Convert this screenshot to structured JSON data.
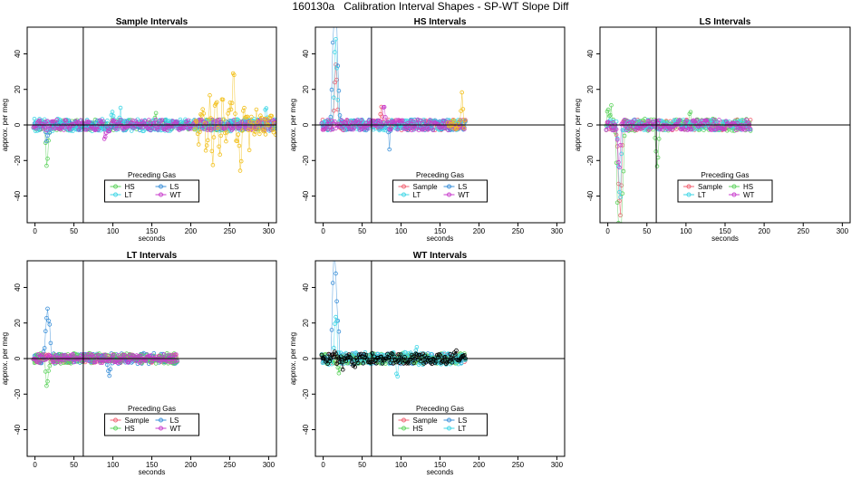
{
  "page_title": "160130a   Calibration Interval Shapes - SP-WT Slope Diff",
  "colors": {
    "Sample": "#f06070",
    "HS": "#5ed35e",
    "LS": "#3a8fd8",
    "LT": "#3fd6e6",
    "WT": "#c83ccc",
    "gold": "#f2c01c",
    "black": "#000000"
  },
  "chart_data": [
    {
      "type": "scatter",
      "title": "Sample Intervals",
      "xlabel": "seconds",
      "ylabel": "approx. per meg",
      "xlim": [
        -10,
        310
      ],
      "ylim": [
        -55,
        55
      ],
      "xticks": [
        0,
        50,
        100,
        150,
        200,
        250,
        300
      ],
      "yticks": [
        -40,
        -20,
        0,
        20,
        40
      ],
      "vline_x": 62,
      "hline_y": 0,
      "legend": {
        "title": "Preceding Gas",
        "position": "bottom-center",
        "entries": [
          "HS",
          "LS",
          "LT",
          "WT"
        ]
      },
      "series": [
        {
          "name": "HS",
          "color_key": "HS",
          "xmax": 310,
          "noise": 3,
          "spikes": [
            [
              15,
              -21
            ],
            [
              17,
              -12
            ],
            [
              155,
              11
            ]
          ]
        },
        {
          "name": "LS",
          "color_key": "LS",
          "xmax": 310,
          "noise": 3,
          "spikes": [
            [
              15,
              -9
            ],
            [
              17,
              -6
            ]
          ]
        },
        {
          "name": "LT",
          "color_key": "LT",
          "xmax": 310,
          "noise": 3.5,
          "spikes": [
            [
              100,
              9
            ],
            [
              110,
              8
            ],
            [
              297,
              12
            ]
          ]
        },
        {
          "name": "WT",
          "color_key": "WT",
          "xmax": 310,
          "noise": 3,
          "spikes": [
            [
              90,
              -9
            ],
            [
              95,
              -8
            ]
          ]
        },
        {
          "color_key": "gold",
          "xmax": 310,
          "noise": 6,
          "spikes": [
            [
              210,
              -10
            ],
            [
              215,
              12
            ],
            [
              220,
              -22
            ],
            [
              225,
              19
            ],
            [
              228,
              -32
            ],
            [
              232,
              20
            ],
            [
              237,
              -21
            ],
            [
              241,
              21
            ],
            [
              245,
              -13
            ],
            [
              250,
              18
            ],
            [
              255,
              33
            ],
            [
              259,
              -13
            ],
            [
              264,
              -25
            ],
            [
              268,
              8
            ],
            [
              275,
              -10
            ],
            [
              285,
              9
            ],
            [
              300,
              5
            ]
          ],
          "from": 205
        }
      ]
    },
    {
      "type": "scatter",
      "title": "HS Intervals",
      "xlabel": "seconds",
      "ylabel": "approx. per meg",
      "xlim": [
        -10,
        310
      ],
      "ylim": [
        -55,
        55
      ],
      "xticks": [
        0,
        50,
        100,
        150,
        200,
        250,
        300
      ],
      "yticks": [
        -40,
        -20,
        0,
        20,
        40
      ],
      "vline_x": 62,
      "hline_y": 0,
      "legend": {
        "title": "Preceding Gas",
        "position": "bottom-center",
        "entries": [
          "Sample",
          "LS",
          "LT",
          "WT"
        ]
      },
      "series": [
        {
          "name": "Sample",
          "color_key": "Sample",
          "xmax": 183,
          "noise": 3,
          "spikes": [
            [
              15,
              22
            ],
            [
              17,
              30
            ],
            [
              75,
              10
            ]
          ]
        },
        {
          "name": "LS",
          "color_key": "LS",
          "xmax": 183,
          "noise": 3,
          "spikes": [
            [
              12,
              35
            ],
            [
              14,
              50
            ],
            [
              16,
              55
            ],
            [
              18,
              40
            ],
            [
              20,
              15
            ],
            [
              85,
              -12
            ]
          ]
        },
        {
          "name": "LT",
          "color_key": "LT",
          "xmax": 183,
          "noise": 3,
          "spikes": [
            [
              15,
              35
            ],
            [
              17,
              42
            ]
          ]
        },
        {
          "name": "WT",
          "color_key": "WT",
          "xmax": 183,
          "noise": 3,
          "spikes": [
            [
              78,
              12
            ]
          ]
        },
        {
          "color_key": "gold",
          "xmax": 183,
          "noise": 3,
          "spikes": [
            [
              178,
              19
            ]
          ],
          "from": 160
        }
      ]
    },
    {
      "type": "scatter",
      "title": "LS Intervals",
      "xlabel": "seconds",
      "ylabel": "approx. per meg",
      "xlim": [
        -10,
        310
      ],
      "ylim": [
        -55,
        55
      ],
      "xticks": [
        0,
        50,
        100,
        150,
        200,
        250,
        300
      ],
      "yticks": [
        -40,
        -20,
        0,
        20,
        40
      ],
      "vline_x": 62,
      "hline_y": 0,
      "legend": {
        "title": "Preceding Gas",
        "position": "bottom-center",
        "entries": [
          "Sample",
          "HS",
          "LT",
          "WT"
        ]
      },
      "series": [
        {
          "name": "Sample",
          "color_key": "Sample",
          "xmax": 183,
          "noise": 3,
          "spikes": [
            [
              13,
              -20
            ],
            [
              15,
              -35
            ],
            [
              17,
              -45
            ]
          ]
        },
        {
          "name": "HS",
          "color_key": "HS",
          "xmax": 183,
          "noise": 3.5,
          "spikes": [
            [
              0,
              15
            ],
            [
              4,
              10
            ],
            [
              12,
              -30
            ],
            [
              14,
              -48
            ],
            [
              16,
              -52
            ],
            [
              18,
              -40
            ],
            [
              20,
              -20
            ],
            [
              62,
              -17
            ],
            [
              64,
              -16
            ],
            [
              105,
              11
            ]
          ]
        },
        {
          "name": "LT",
          "color_key": "LT",
          "xmax": 183,
          "noise": 3,
          "spikes": [
            [
              14,
              -25
            ],
            [
              16,
              -38
            ]
          ]
        },
        {
          "name": "WT",
          "color_key": "WT",
          "xmax": 183,
          "noise": 3,
          "spikes": [
            [
              13,
              -15
            ],
            [
              15,
              -22
            ]
          ]
        }
      ]
    },
    {
      "type": "scatter",
      "title": "LT Intervals",
      "xlabel": "seconds",
      "ylabel": "approx. per meg",
      "xlim": [
        -10,
        310
      ],
      "ylim": [
        -55,
        55
      ],
      "xticks": [
        0,
        50,
        100,
        150,
        200,
        250,
        300
      ],
      "yticks": [
        -40,
        -20,
        0,
        20,
        40
      ],
      "vline_x": 62,
      "hline_y": 0,
      "legend": {
        "title": "Preceding Gas",
        "position": "bottom-center",
        "entries": [
          "Sample",
          "LS",
          "HS",
          "WT"
        ]
      },
      "series": [
        {
          "name": "Sample",
          "color_key": "Sample",
          "xmax": 183,
          "noise": 2.5,
          "spikes": []
        },
        {
          "name": "LS",
          "color_key": "LS",
          "xmax": 183,
          "noise": 3,
          "spikes": [
            [
              13,
              12
            ],
            [
              15,
              20
            ],
            [
              17,
              22
            ],
            [
              19,
              14
            ],
            [
              95,
              -11
            ]
          ]
        },
        {
          "name": "HS",
          "color_key": "HS",
          "xmax": 183,
          "noise": 3,
          "spikes": [
            [
              15,
              -13
            ],
            [
              17,
              -8
            ]
          ]
        },
        {
          "name": "WT",
          "color_key": "WT",
          "xmax": 183,
          "noise": 2.5,
          "spikes": []
        }
      ]
    },
    {
      "type": "scatter",
      "title": "WT Intervals",
      "xlabel": "seconds",
      "ylabel": "approx. per meg",
      "xlim": [
        -10,
        310
      ],
      "ylim": [
        -55,
        55
      ],
      "xticks": [
        0,
        50,
        100,
        150,
        200,
        250,
        300
      ],
      "yticks": [
        -40,
        -20,
        0,
        20,
        40
      ],
      "vline_x": 62,
      "hline_y": 0,
      "legend": {
        "title": "Preceding Gas",
        "position": "bottom-center",
        "entries": [
          "Sample",
          "LS",
          "HS",
          "LT"
        ]
      },
      "series": [
        {
          "name": "Sample",
          "color_key": "Sample",
          "xmax": 183,
          "noise": 2.5,
          "spikes": []
        },
        {
          "name": "LS",
          "color_key": "LS",
          "xmax": 183,
          "noise": 3,
          "spikes": [
            [
              12,
              27
            ],
            [
              14,
              52
            ],
            [
              16,
              40
            ],
            [
              18,
              22
            ],
            [
              20,
              10
            ]
          ]
        },
        {
          "name": "HS",
          "color_key": "HS",
          "xmax": 183,
          "noise": 3,
          "spikes": [
            [
              20,
              -8
            ]
          ]
        },
        {
          "name": "LT",
          "color_key": "LT",
          "xmax": 183,
          "noise": 3.5,
          "spikes": [
            [
              15,
              18
            ],
            [
              17,
              24
            ],
            [
              95,
              -11
            ],
            [
              120,
              8
            ]
          ]
        },
        {
          "color_key": "black",
          "xmax": 183,
          "noise": 3,
          "spikes": [
            [
              15,
              4
            ],
            [
              25,
              -6
            ],
            [
              40,
              -6
            ],
            [
              170,
              3
            ]
          ]
        }
      ]
    }
  ]
}
